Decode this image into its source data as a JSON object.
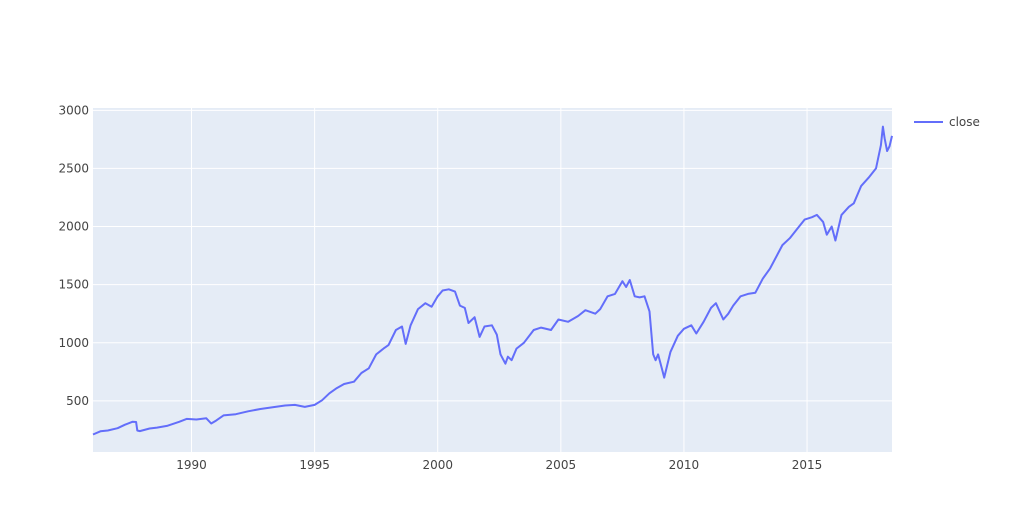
{
  "chart_data": {
    "type": "line",
    "title": "",
    "xlabel": "",
    "ylabel": "",
    "xlim": [
      1986.0,
      2018.45
    ],
    "ylim": [
      60,
      3020
    ],
    "x_ticks": [
      1990,
      1995,
      2000,
      2005,
      2010,
      2015
    ],
    "x_tick_labels": [
      "1990",
      "1995",
      "2000",
      "2005",
      "2010",
      "2015"
    ],
    "y_ticks": [
      500,
      1000,
      1500,
      2000,
      2500,
      3000
    ],
    "y_tick_labels": [
      "500",
      "1000",
      "1500",
      "2000",
      "2500",
      "3000"
    ],
    "grid": true,
    "legend_position": "top-right",
    "colors": {
      "plot_background": "#E5ECF6",
      "grid": "#ffffff",
      "series": "#636EFA",
      "text": "#444444"
    },
    "series": [
      {
        "name": "close",
        "x": [
          1986.0,
          1986.3,
          1986.6,
          1987.0,
          1987.3,
          1987.6,
          1987.75,
          1987.8,
          1987.9,
          1988.3,
          1988.6,
          1989.0,
          1989.5,
          1989.8,
          1990.2,
          1990.6,
          1990.8,
          1991.0,
          1991.3,
          1991.8,
          1992.3,
          1992.8,
          1993.3,
          1993.8,
          1994.2,
          1994.6,
          1995.0,
          1995.3,
          1995.6,
          1995.9,
          1996.2,
          1996.6,
          1996.9,
          1997.2,
          1997.5,
          1997.8,
          1998.0,
          1998.3,
          1998.55,
          1998.7,
          1998.9,
          1999.2,
          1999.5,
          1999.75,
          2000.0,
          2000.2,
          2000.45,
          2000.7,
          2000.9,
          2001.1,
          2001.25,
          2001.5,
          2001.7,
          2001.9,
          2002.2,
          2002.4,
          2002.55,
          2002.75,
          2002.85,
          2003.0,
          2003.2,
          2003.5,
          2003.9,
          2004.2,
          2004.6,
          2004.9,
          2005.3,
          2005.7,
          2006.0,
          2006.4,
          2006.6,
          2006.9,
          2007.2,
          2007.5,
          2007.65,
          2007.8,
          2008.0,
          2008.2,
          2008.4,
          2008.6,
          2008.75,
          2008.85,
          2008.95,
          2009.1,
          2009.2,
          2009.45,
          2009.75,
          2010.0,
          2010.3,
          2010.5,
          2010.8,
          2011.1,
          2011.3,
          2011.6,
          2011.8,
          2012.0,
          2012.3,
          2012.6,
          2012.9,
          2013.2,
          2013.5,
          2013.8,
          2014.0,
          2014.3,
          2014.6,
          2014.9,
          2015.2,
          2015.4,
          2015.65,
          2015.8,
          2016.0,
          2016.15,
          2016.4,
          2016.7,
          2016.9,
          2017.2,
          2017.5,
          2017.8,
          2018.0,
          2018.08,
          2018.15,
          2018.25,
          2018.35,
          2018.45
        ],
        "y": [
          211,
          238,
          245,
          265,
          295,
          320,
          318,
          245,
          240,
          262,
          270,
          285,
          320,
          345,
          340,
          350,
          305,
          330,
          375,
          385,
          410,
          430,
          445,
          460,
          465,
          448,
          465,
          505,
          565,
          610,
          645,
          665,
          740,
          780,
          900,
          950,
          980,
          1110,
          1140,
          990,
          1150,
          1290,
          1340,
          1310,
          1400,
          1450,
          1460,
          1440,
          1320,
          1300,
          1170,
          1220,
          1050,
          1140,
          1150,
          1070,
          900,
          820,
          880,
          850,
          950,
          1000,
          1110,
          1130,
          1110,
          1200,
          1180,
          1230,
          1280,
          1250,
          1290,
          1400,
          1420,
          1530,
          1480,
          1540,
          1400,
          1390,
          1400,
          1270,
          900,
          850,
          900,
          780,
          700,
          920,
          1060,
          1120,
          1150,
          1080,
          1180,
          1300,
          1340,
          1200,
          1250,
          1320,
          1400,
          1420,
          1430,
          1550,
          1640,
          1760,
          1840,
          1900,
          1980,
          2060,
          2080,
          2100,
          2040,
          1930,
          2000,
          1880,
          2100,
          2170,
          2200,
          2350,
          2420,
          2500,
          2700,
          2860,
          2760,
          2650,
          2690,
          2780
        ]
      }
    ]
  }
}
